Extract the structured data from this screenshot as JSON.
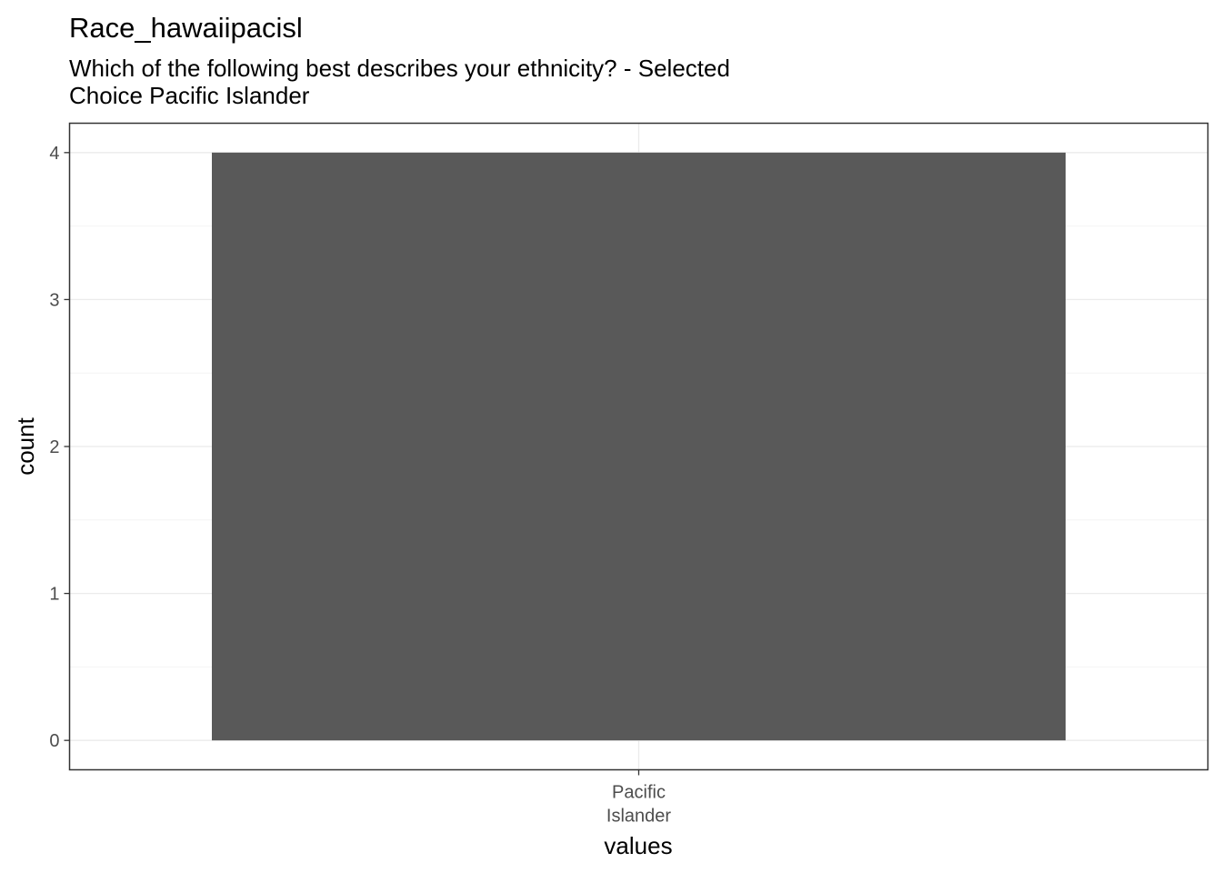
{
  "chart_data": {
    "type": "bar",
    "title": "Race_hawaiipacisl",
    "subtitle_lines": [
      "Which of the following best describes your ethnicity? - Selected",
      "Choice Pacific Islander"
    ],
    "xlabel": "values",
    "ylabel": "count",
    "categories": [
      {
        "label_lines": [
          "Pacific",
          "Islander"
        ]
      }
    ],
    "values": [
      4
    ],
    "ylim": [
      -0.2,
      4.2
    ],
    "yticks": [
      0,
      1,
      2,
      3,
      4
    ],
    "grid": true,
    "legend": "none",
    "colors": {
      "bar": "#595959",
      "panel_border": "#333333",
      "grid_major": "#ebebeb",
      "grid_minor": "#f4f4f4",
      "tick_mark": "#333333"
    }
  }
}
